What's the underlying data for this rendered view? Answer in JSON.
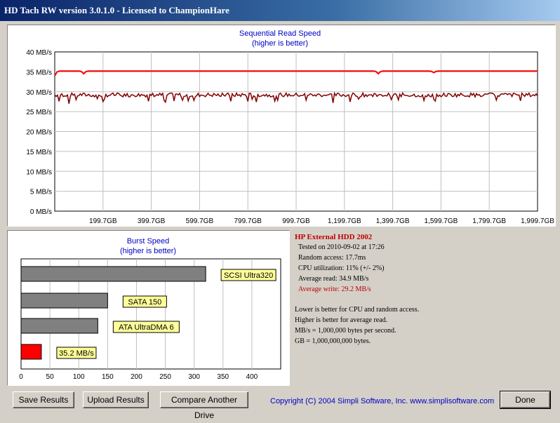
{
  "window": {
    "title": "HD Tach RW version 3.0.1.0 - Licensed to ChampionHare"
  },
  "sequential": {
    "title": "Sequential Read Speed",
    "subtitle": "(higher is better)",
    "y_ticks": [
      "40 MB/s",
      "35 MB/s",
      "30 MB/s",
      "25 MB/s",
      "20 MB/s",
      "15 MB/s",
      "10 MB/s",
      "5 MB/s",
      "0 MB/s"
    ],
    "x_ticks": [
      "199.7GB",
      "399.7GB",
      "599.7GB",
      "799.7GB",
      "999.7GB",
      "1,199.7GB",
      "1,399.7GB",
      "1,599.7GB",
      "1,799.7GB",
      "1,999.7GB"
    ]
  },
  "burst": {
    "title": "Burst Speed",
    "subtitle": "(higher is better)",
    "x_ticks": [
      "0",
      "50",
      "100",
      "150",
      "200",
      "250",
      "300",
      "350",
      "400"
    ]
  },
  "chart_data": [
    {
      "type": "line",
      "title": "Sequential Read Speed",
      "subtitle": "(higher is better)",
      "xlabel": "",
      "ylabel": "",
      "x": [
        0,
        1999.7
      ],
      "ylim": [
        0,
        40
      ],
      "xlim": [
        0,
        1999.7
      ],
      "series": [
        {
          "color": "#ff0000",
          "baseline": 35.2,
          "dips": [
            [
              0,
              34.0
            ],
            [
              120,
              34.5
            ],
            [
              1340,
              34.5
            ],
            [
              1570,
              34.8
            ]
          ]
        },
        {
          "color": "#800000",
          "baseline": 29.2,
          "min": 27.0,
          "max": 30.2
        }
      ],
      "grid": true
    },
    {
      "type": "bar",
      "title": "Burst Speed",
      "subtitle": "(higher is better)",
      "categories": [
        "SCSI Ultra320",
        "SATA 150",
        "ATA UltraDMA 6",
        "35.2 MB/s"
      ],
      "values": [
        320,
        150,
        133,
        35.2
      ],
      "colors": [
        "#808080",
        "#808080",
        "#808080",
        "#ff0000"
      ],
      "xlim": [
        0,
        450
      ],
      "grid": true
    }
  ],
  "info": {
    "drive_name": "HP External HDD 2002",
    "tested": "Tested on 2010-09-02 at 17:26",
    "random_access": "Random access: 17.7ms",
    "cpu": "CPU utilization: 11% (+/- 2%)",
    "avg_read": "Average read: 34.9 MB/s",
    "avg_write": "Average write: 29.2 MB/s",
    "note1": "Lower is better for CPU and random access.",
    "note2": "Higher is better for average read.",
    "note3": "MB/s = 1,000,000 bytes per second.",
    "note4": "GB = 1,000,000,000 bytes."
  },
  "buttons": {
    "save": "Save Results",
    "upload": "Upload Results",
    "compare": "Compare Another Drive",
    "done": "Done"
  },
  "copyright": "Copyright (C) 2004 Simpli Software, Inc. www.simplisoftware.com",
  "colors": {
    "accent_blue": "#0000c0",
    "read_line": "#ff0000",
    "write_line": "#800000",
    "drive_red": "#c00000"
  }
}
